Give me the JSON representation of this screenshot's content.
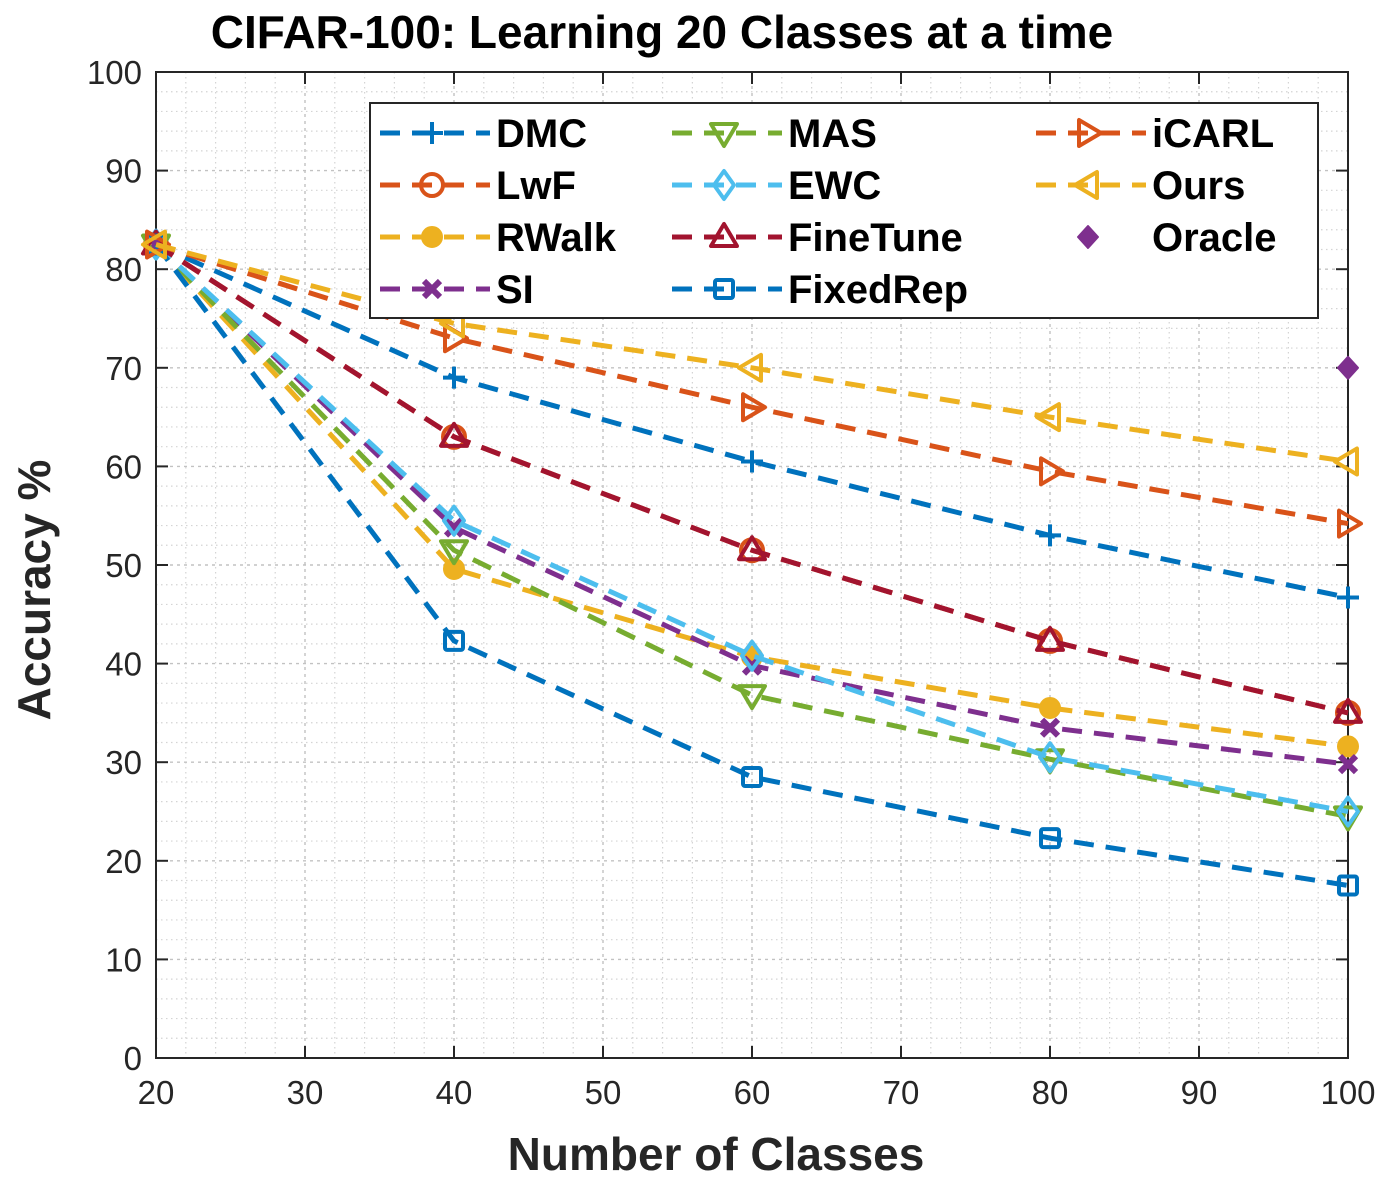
{
  "chart_data": {
    "type": "line",
    "title": "CIFAR-100: Learning 20 Classes at a time",
    "xlabel": "Number of Classes",
    "ylabel": "Accuracy %",
    "xlim": [
      20,
      100
    ],
    "ylim": [
      0,
      100
    ],
    "xticks": [
      20,
      30,
      40,
      50,
      60,
      70,
      80,
      90,
      100
    ],
    "yticks": [
      0,
      10,
      20,
      30,
      40,
      50,
      60,
      70,
      80,
      90,
      100
    ],
    "grid": true,
    "minor_grid": true,
    "legend_position": "top-right",
    "series": [
      {
        "name": "DMC",
        "color": "#0072BD",
        "marker": "plus",
        "x": [
          20,
          40,
          60,
          80,
          100
        ],
        "values": [
          82.5,
          69.0,
          60.5,
          53.0,
          46.7
        ]
      },
      {
        "name": "LwF",
        "color": "#D95319",
        "marker": "circle",
        "x": [
          20,
          40,
          60,
          80,
          100
        ],
        "values": [
          82.5,
          63.0,
          51.5,
          42.3,
          35.0
        ]
      },
      {
        "name": "RWalk",
        "color": "#EDB120",
        "marker": "filled-circle",
        "x": [
          20,
          40,
          60,
          80,
          100
        ],
        "values": [
          82.5,
          49.6,
          40.7,
          35.5,
          31.6
        ]
      },
      {
        "name": "SI",
        "color": "#7E2F8E",
        "marker": "x-filled",
        "x": [
          20,
          40,
          60,
          80,
          100
        ],
        "values": [
          82.5,
          53.8,
          39.8,
          33.5,
          29.8
        ]
      },
      {
        "name": "MAS",
        "color": "#77AC30",
        "marker": "triangle-down",
        "x": [
          20,
          40,
          60,
          80,
          100
        ],
        "values": [
          82.5,
          51.5,
          36.8,
          30.3,
          24.5
        ]
      },
      {
        "name": "EWC",
        "color": "#4DBEEE",
        "marker": "diamond",
        "x": [
          20,
          40,
          60,
          80,
          100
        ],
        "values": [
          82.5,
          54.5,
          40.8,
          30.5,
          25.0
        ]
      },
      {
        "name": "FineTune",
        "color": "#A2142F",
        "marker": "triangle-up",
        "x": [
          20,
          40,
          60,
          80,
          100
        ],
        "values": [
          82.5,
          63.0,
          51.5,
          42.3,
          35.0
        ]
      },
      {
        "name": "FixedRep",
        "color": "#0072BD",
        "marker": "square",
        "x": [
          20,
          40,
          60,
          80,
          100
        ],
        "values": [
          82.5,
          42.3,
          28.5,
          22.3,
          17.5
        ]
      },
      {
        "name": "iCARL",
        "color": "#D95319",
        "marker": "triangle-right",
        "x": [
          20,
          40,
          60,
          80,
          100
        ],
        "values": [
          82.5,
          73.0,
          66.0,
          59.5,
          54.2
        ]
      },
      {
        "name": "Ours",
        "color": "#EDB120",
        "marker": "triangle-left",
        "x": [
          20,
          40,
          60,
          80,
          100
        ],
        "values": [
          82.5,
          74.5,
          70.0,
          65.0,
          60.5
        ]
      },
      {
        "name": "Oracle",
        "color": "#7E2F8E",
        "marker": "filled-diamond",
        "x": [
          100
        ],
        "values": [
          70.0
        ]
      }
    ]
  }
}
